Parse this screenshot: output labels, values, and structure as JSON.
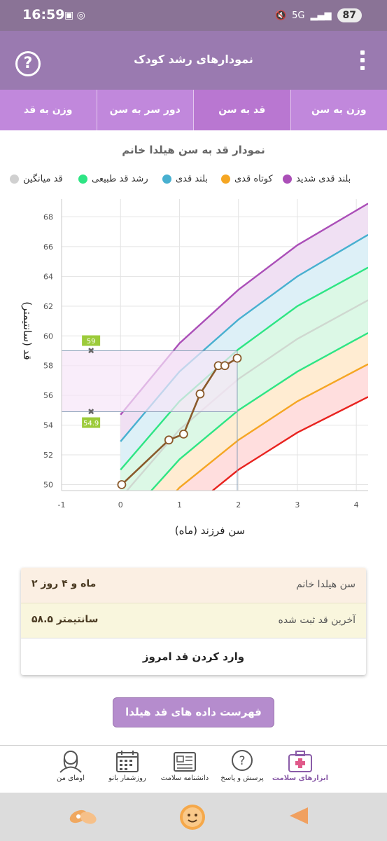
{
  "status_bar": {
    "time": "16:59",
    "battery": "87",
    "signal": "5G"
  },
  "app_bar": {
    "title": "نمودارهای رشد کودک",
    "help_icon": "help-icon",
    "menu_icon": "more-vert-icon"
  },
  "tabs": [
    {
      "label": "وزن به سن",
      "active": false
    },
    {
      "label": "قد به سن",
      "active": true
    },
    {
      "label": "دور سر به سن",
      "active": false
    },
    {
      "label": "وزن به قد",
      "active": false
    }
  ],
  "chart_title": "نمودار قد به سن هیلدا خانم",
  "legend": [
    {
      "label": "بلند قدی شدید",
      "color": "#ab4fb8"
    },
    {
      "label": "کوتاه قدی",
      "color": "#f5a623"
    },
    {
      "label": "بلند قدی",
      "color": "#48b0d0"
    },
    {
      "label": "رشد قد طبیعی",
      "color": "#2ee584"
    },
    {
      "label": "قد میانگین",
      "color": "#d0d0d0"
    }
  ],
  "chart_data": {
    "type": "line",
    "xlabel": "سن فرزند (ماه)",
    "ylabel": "قد (سانتیمتر)",
    "xlim": [
      -1,
      4.2
    ],
    "ylim": [
      49.6,
      69.2
    ],
    "xticks": [
      -1,
      0,
      1,
      2,
      3,
      4
    ],
    "yticks": [
      50,
      52,
      54,
      56,
      58,
      60,
      62,
      64,
      66,
      68
    ],
    "grid": true,
    "reference_x": [
      0,
      1,
      2,
      3,
      4.2
    ],
    "reference_lines": [
      {
        "key": "severe_tall",
        "color": "#ab4fb8",
        "fill": "#f0e0f3",
        "values": [
          54.7,
          59.5,
          63.1,
          66.1,
          68.9
        ]
      },
      {
        "key": "tall",
        "color": "#48b0d0",
        "fill": "#ddf0f7",
        "values": [
          52.9,
          57.6,
          61.1,
          64.0,
          66.8
        ]
      },
      {
        "key": "normal_upper",
        "color": "#2ee584",
        "fill": "#dcf8e6",
        "values": [
          51.0,
          55.6,
          59.1,
          62.0,
          64.6
        ]
      },
      {
        "key": "median",
        "color": "#cfd8d0",
        "fill": "#dcf8e6",
        "values": [
          49.1,
          53.7,
          57.1,
          59.8,
          62.4
        ]
      },
      {
        "key": "normal_lower",
        "color": "#2ee584",
        "fill": "#ffecd2",
        "values": [
          47.3,
          51.7,
          55.0,
          57.6,
          60.2
        ]
      },
      {
        "key": "short",
        "color": "#f5a623",
        "fill": "#ffdede",
        "values": [
          45.4,
          49.8,
          53.0,
          55.6,
          58.1
        ]
      },
      {
        "key": "severe_short",
        "color": "#e8231f",
        "fill": "#ffffff",
        "values": [
          43.6,
          47.8,
          51.0,
          53.5,
          55.9
        ]
      }
    ],
    "child_series": {
      "name": "هیلدا خانم",
      "color": "#8a5a2b",
      "points": [
        [
          0.02,
          50.0
        ],
        [
          0.82,
          53.0
        ],
        [
          1.07,
          53.4
        ],
        [
          1.35,
          56.1
        ],
        [
          1.66,
          58.0
        ],
        [
          1.77,
          58.0
        ],
        [
          1.98,
          58.5
        ]
      ]
    },
    "range_markers": [
      {
        "label": "59",
        "value": 59.0
      },
      {
        "label": "54.9",
        "value": 54.9
      }
    ]
  },
  "info_card": {
    "name_label": "سن هیلدا خانم",
    "age_value": "۲ ماه و ۴ روز",
    "last_height_label": "آخرین قد ثبت شده",
    "last_height_value": "۵۸.۵ سانتیمتر",
    "enter_button": "وارد کردن قد امروز"
  },
  "list_button": "فهرست داده های قد هیلدا خانم",
  "bottom_nav": [
    {
      "label": "ابزارهای سلامت",
      "icon": "medical-kit-icon",
      "active": true
    },
    {
      "label": "پرسش و پاسخ",
      "icon": "question-bubble-icon",
      "active": false
    },
    {
      "label": "دانشنامه سلامت",
      "icon": "newspaper-icon",
      "active": false
    },
    {
      "label": "روزشمار بانو",
      "icon": "calendar-icon",
      "active": false
    },
    {
      "label": "اومای من",
      "icon": "user-profile-icon",
      "active": false
    }
  ],
  "system_nav": [
    "app-shortcut-icon",
    "home-app-icon",
    "back-icon"
  ]
}
